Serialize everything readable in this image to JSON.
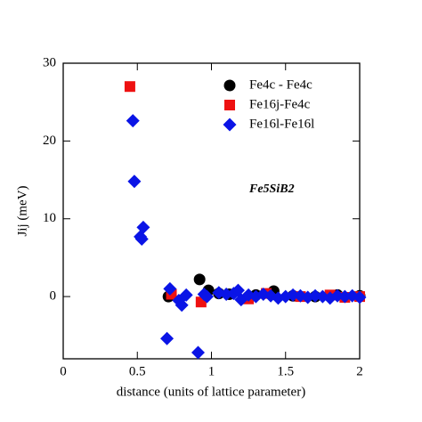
{
  "chart_data": {
    "type": "scatter",
    "xlabel": "distance (units of lattice parameter)",
    "ylabel": "Jij (meV)",
    "annotation": "Fe5SiB2",
    "xlim": [
      0,
      2
    ],
    "xticks": [
      0,
      0.5,
      1,
      1.5,
      2
    ],
    "ylim": [
      -8,
      30
    ],
    "yticks": [
      0,
      10,
      20,
      30
    ],
    "series": [
      {
        "name": "Fe4c - Fe4c",
        "color": "#000000",
        "marker": "circle",
        "x": [
          0.71,
          0.92,
          0.98,
          1.05,
          1.12,
          1.25,
          1.3,
          1.42,
          1.55,
          1.7,
          1.85,
          2.0
        ],
        "values": [
          0,
          2.2,
          0.8,
          0.4,
          0.3,
          0,
          0.2,
          0.7,
          0.1,
          0,
          0.2,
          0.1
        ]
      },
      {
        "name": "Fe16j-Fe4c",
        "color": "#ee1111",
        "marker": "square",
        "x": [
          0.45,
          0.73,
          0.93,
          1.25,
          1.37,
          1.6,
          1.8,
          1.9,
          2.0
        ],
        "values": [
          27,
          0.3,
          -0.7,
          -0.3,
          0.4,
          0,
          0.2,
          -0.1,
          0
        ]
      },
      {
        "name": "Fe16l-Fe16l",
        "color": "#0a14e6",
        "marker": "diamond",
        "x": [
          0.47,
          0.48,
          0.52,
          0.53,
          0.54,
          0.7,
          0.72,
          0.78,
          0.8,
          0.83,
          0.91,
          0.95,
          0.97,
          1.05,
          1.1,
          1.15,
          1.18,
          1.2,
          1.25,
          1.3,
          1.35,
          1.4,
          1.45,
          1.5,
          1.55,
          1.6,
          1.65,
          1.7,
          1.75,
          1.8,
          1.85,
          1.9,
          1.95,
          2.0
        ],
        "values": [
          22.6,
          14.8,
          7.7,
          7.4,
          8.9,
          -5.4,
          1,
          -0.5,
          -1.1,
          0.2,
          -7.2,
          0.3,
          0,
          0.5,
          0.3,
          0.4,
          0.8,
          -0.4,
          0.2,
          0,
          0.3,
          0.1,
          -0.2,
          0,
          0.2,
          0.1,
          -0.1,
          0.1,
          0,
          -0.2,
          0.1,
          0,
          0.1,
          -0.1
        ]
      }
    ]
  }
}
